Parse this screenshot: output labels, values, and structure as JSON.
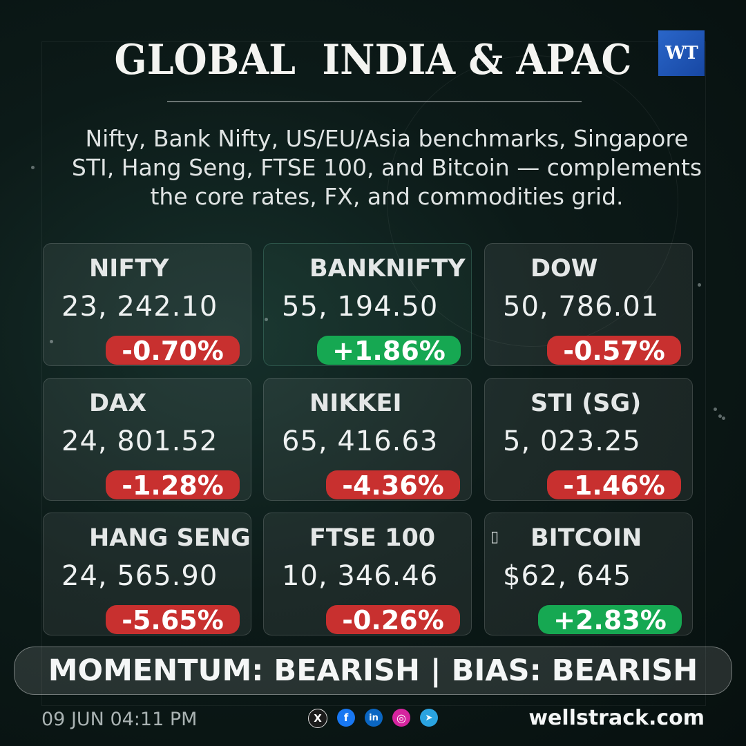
{
  "header": {
    "title": "GLOBAL  INDIA & APAC",
    "logo_text": "WT",
    "subtitle_lines": [
      "Nifty, Bank Nifty, US/EU/Asia benchmarks, Singapore",
      "STI, Hang Seng, FTSE 100, and Bitcoin — complements",
      "the core rates, FX, and commodities grid."
    ]
  },
  "cards": [
    {
      "name": "NIFTY",
      "value": "23, 242.10",
      "change": "-0.70%",
      "direction": "down"
    },
    {
      "name": "BANKNIFTY",
      "value": "55, 194.50",
      "change": "+1.86%",
      "direction": "up"
    },
    {
      "name": "DOW",
      "value": "50, 786.01",
      "change": "-0.57%",
      "direction": "down"
    },
    {
      "name": "DAX",
      "value": "24, 801.52",
      "change": "-1.28%",
      "direction": "down"
    },
    {
      "name": "NIKKEI",
      "value": "65, 416.63",
      "change": "-4.36%",
      "direction": "down"
    },
    {
      "name": "STI (SG)",
      "value": "5, 023.25",
      "change": "-1.46%",
      "direction": "down"
    },
    {
      "name": "HANG SENG",
      "value": "24, 565.90",
      "change": "-5.65%",
      "direction": "down"
    },
    {
      "name": "FTSE 100",
      "value": "10, 346.46",
      "change": "-0.26%",
      "direction": "down"
    },
    {
      "name": "BITCOIN",
      "value": "$62, 645",
      "change": "+2.83%",
      "direction": "up",
      "icon": "bitcoin-icon"
    }
  ],
  "footer": {
    "momentum": "MOMENTUM: BEARISH  |  BIAS: BEARISH",
    "timestamp": "09 JUN 04:11 PM",
    "website": "wellstrack.com",
    "socials": [
      {
        "icon": "x-icon",
        "glyph": "X",
        "color": "#1b1b1b"
      },
      {
        "icon": "facebook-icon",
        "glyph": "f",
        "color": "#1877f2"
      },
      {
        "icon": "linkedin-icon",
        "glyph": "in",
        "color": "#0a66c2"
      },
      {
        "icon": "instagram-icon",
        "glyph": "◎",
        "color": "#d6249f"
      },
      {
        "icon": "telegram-icon",
        "glyph": "➤",
        "color": "#2aa3e0"
      }
    ]
  },
  "colors": {
    "down": "#c8302f",
    "up": "#16a852",
    "logo": "#1f56b6"
  }
}
